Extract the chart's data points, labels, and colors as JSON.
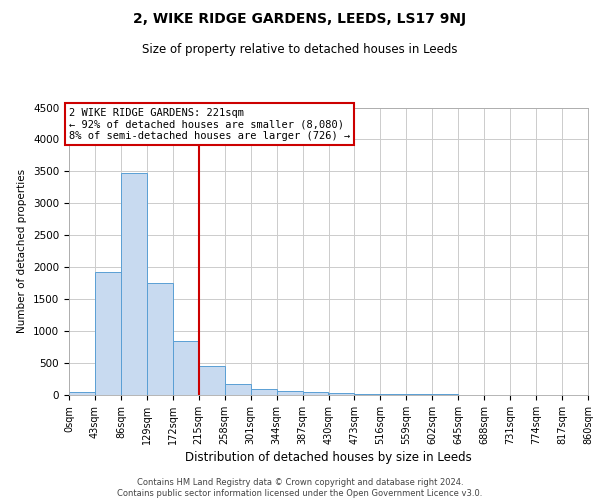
{
  "title": "2, WIKE RIDGE GARDENS, LEEDS, LS17 9NJ",
  "subtitle": "Size of property relative to detached houses in Leeds",
  "xlabel": "Distribution of detached houses by size in Leeds",
  "ylabel": "Number of detached properties",
  "bar_edges": [
    0,
    43,
    86,
    129,
    172,
    215,
    258,
    301,
    344,
    387,
    430,
    473,
    516,
    559,
    602,
    645,
    688,
    731,
    774,
    817,
    860
  ],
  "bar_heights": [
    50,
    1920,
    3470,
    1760,
    840,
    450,
    170,
    100,
    70,
    50,
    30,
    20,
    15,
    10,
    8,
    5,
    5,
    3,
    3,
    2
  ],
  "bar_color": "#c8daf0",
  "bar_edge_color": "#5a9fd4",
  "vline_x": 215,
  "vline_color": "#cc0000",
  "ylim": [
    0,
    4500
  ],
  "annotation_text": "2 WIKE RIDGE GARDENS: 221sqm\n← 92% of detached houses are smaller (8,080)\n8% of semi-detached houses are larger (726) →",
  "annotation_box_color": "#cc0000",
  "footnote": "Contains HM Land Registry data © Crown copyright and database right 2024.\nContains public sector information licensed under the Open Government Licence v3.0.",
  "tick_labels": [
    "0sqm",
    "43sqm",
    "86sqm",
    "129sqm",
    "172sqm",
    "215sqm",
    "258sqm",
    "301sqm",
    "344sqm",
    "387sqm",
    "430sqm",
    "473sqm",
    "516sqm",
    "559sqm",
    "602sqm",
    "645sqm",
    "688sqm",
    "731sqm",
    "774sqm",
    "817sqm",
    "860sqm"
  ],
  "yticks": [
    0,
    500,
    1000,
    1500,
    2000,
    2500,
    3000,
    3500,
    4000,
    4500
  ],
  "background_color": "#ffffff",
  "grid_color": "#cccccc",
  "title_fontsize": 10,
  "subtitle_fontsize": 8.5,
  "ylabel_fontsize": 7.5,
  "xlabel_fontsize": 8.5,
  "tick_fontsize": 7,
  "ytick_fontsize": 7.5,
  "annotation_fontsize": 7.5,
  "footnote_fontsize": 6.0
}
